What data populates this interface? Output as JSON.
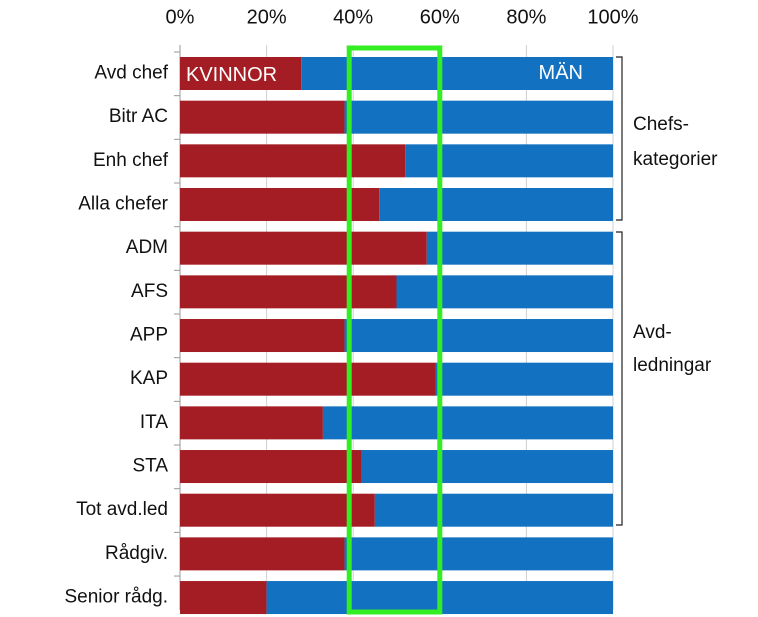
{
  "chart_data": {
    "type": "stacked-bar-horizontal",
    "categories": [
      "Avd chef",
      "Bitr AC",
      "Enh chef",
      "Alla chefer",
      "ADM",
      "AFS",
      "APP",
      "KAP",
      "ITA",
      "STA",
      "Tot avd.led",
      "Rådgiv.",
      "Senior rådg."
    ],
    "series": [
      {
        "name": "KVINNOR",
        "color": "#a51d24",
        "values": [
          28,
          38,
          52,
          46,
          57,
          50,
          38,
          59,
          33,
          42,
          45,
          38,
          20
        ]
      },
      {
        "name": "MÄN",
        "color": "#1271c1",
        "values": [
          72,
          62,
          48,
          54,
          43,
          50,
          62,
          41,
          67,
          58,
          55,
          62,
          80
        ]
      }
    ],
    "xlim": [
      0,
      100
    ],
    "xticks": [
      {
        "value": 0,
        "label": "0%"
      },
      {
        "value": 20,
        "label": "20%"
      },
      {
        "value": 40,
        "label": "40%"
      },
      {
        "value": 60,
        "label": "60%"
      },
      {
        "value": 80,
        "label": "80%"
      },
      {
        "value": 100,
        "label": "100%"
      }
    ],
    "grid": true,
    "highlight": {
      "range": [
        40,
        60
      ],
      "color": "#33ee22"
    },
    "annotations": [
      [
        "Chefs-",
        "kategorier"
      ],
      [
        "Avd-",
        "ledningar"
      ]
    ]
  }
}
